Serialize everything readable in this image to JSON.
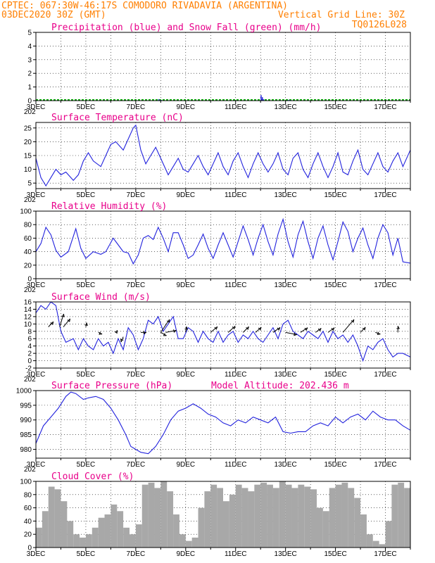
{
  "header": {
    "line1_left": "CPTEC:   067:30W-46:17S  COMODORO RIVADAVIA (ARGENTINA)",
    "line2_left": "03DEC2020 30Z (GMT)",
    "line2_right": "Vertical Grid Line: 30Z",
    "line3_right": "TQ0126L028"
  },
  "colors": {
    "header": "#ff7f00",
    "title": "#e8008a",
    "line": "#2222dd",
    "snow": "#00aa00",
    "cloud": "#a8a8a8"
  },
  "x_axis": {
    "start_day": 3,
    "end_day": 18,
    "tick_labels": [
      "3DEC",
      "5DEC",
      "7DEC",
      "9DEC",
      "11DEC",
      "13DEC",
      "15DEC",
      "17DEC"
    ],
    "tick_days": [
      3,
      5,
      7,
      9,
      11,
      13,
      15,
      17
    ],
    "year_fragment": "202"
  },
  "chart_data": [
    {
      "type": "bar",
      "title": "Precipitation (blue) and Snow Fall (green) (mm/h)",
      "ylim": [
        0,
        5
      ],
      "yticks": [
        0,
        1,
        2,
        3,
        4,
        5
      ],
      "series": [
        {
          "name": "Precipitation",
          "x": [
            7.9,
            8.0,
            12.0,
            12.05,
            12.1,
            13.1,
            13.2
          ],
          "values": [
            0.1,
            0.05,
            0.4,
            0.25,
            0.1,
            0.06,
            0.04
          ]
        },
        {
          "name": "Snow Fall",
          "x": [
            3.0,
            18.0
          ],
          "values": [
            0,
            0
          ]
        }
      ]
    },
    {
      "type": "line",
      "title": "Surface Temperature (nC)",
      "ylim": [
        3,
        27
      ],
      "yticks": [
        5,
        10,
        15,
        20,
        25
      ],
      "series": [
        {
          "name": "Surface Temperature",
          "x": [
            3.0,
            3.2,
            3.4,
            3.6,
            3.8,
            4.0,
            4.2,
            4.5,
            4.7,
            4.9,
            5.1,
            5.3,
            5.6,
            5.8,
            6.0,
            6.2,
            6.5,
            6.7,
            6.9,
            7.0,
            7.2,
            7.4,
            7.6,
            7.8,
            8.0,
            8.3,
            8.5,
            8.7,
            8.9,
            9.1,
            9.3,
            9.5,
            9.7,
            9.9,
            10.1,
            10.3,
            10.5,
            10.7,
            10.9,
            11.1,
            11.3,
            11.5,
            11.7,
            11.9,
            12.1,
            12.3,
            12.5,
            12.7,
            12.9,
            13.1,
            13.3,
            13.5,
            13.7,
            13.9,
            14.1,
            14.3,
            14.5,
            14.7,
            14.9,
            15.1,
            15.3,
            15.5,
            15.7,
            15.9,
            16.1,
            16.3,
            16.5,
            16.7,
            16.9,
            17.1,
            17.3,
            17.5,
            17.7,
            18.0
          ],
          "values": [
            14,
            7,
            4,
            7,
            10,
            8,
            9,
            6,
            8,
            13,
            16,
            13,
            11,
            15,
            19,
            20,
            17,
            21,
            25,
            26,
            17,
            12,
            15,
            18,
            14,
            8,
            11,
            14,
            10,
            9,
            12,
            15,
            11,
            8,
            12,
            16,
            11,
            8,
            13,
            16,
            11,
            7,
            12,
            16,
            12,
            9,
            12,
            16,
            10,
            8,
            14,
            16,
            10,
            7,
            12,
            16,
            11,
            7,
            11,
            16,
            9,
            8,
            13,
            17,
            10,
            8,
            12,
            16,
            11,
            9,
            13,
            16,
            11,
            17
          ]
        }
      ]
    },
    {
      "type": "line",
      "title": "Relative Humidity (%)",
      "ylim": [
        0,
        100
      ],
      "yticks": [
        0,
        20,
        40,
        60,
        80,
        100
      ],
      "series": [
        {
          "name": "Relative Humidity",
          "x": [
            3.0,
            3.2,
            3.4,
            3.6,
            3.8,
            4.0,
            4.3,
            4.6,
            4.8,
            5.0,
            5.3,
            5.6,
            5.8,
            6.1,
            6.3,
            6.5,
            6.7,
            6.9,
            7.1,
            7.3,
            7.5,
            7.7,
            7.9,
            8.1,
            8.3,
            8.5,
            8.7,
            8.9,
            9.1,
            9.3,
            9.5,
            9.7,
            9.9,
            10.1,
            10.3,
            10.5,
            10.7,
            10.9,
            11.1,
            11.3,
            11.5,
            11.7,
            11.9,
            12.1,
            12.3,
            12.5,
            12.7,
            12.9,
            13.1,
            13.3,
            13.5,
            13.7,
            13.9,
            14.1,
            14.3,
            14.5,
            14.7,
            14.9,
            15.1,
            15.3,
            15.5,
            15.7,
            15.9,
            16.1,
            16.3,
            16.5,
            16.7,
            16.9,
            17.1,
            17.3,
            17.5,
            17.7,
            18.0
          ],
          "values": [
            40,
            52,
            76,
            65,
            42,
            32,
            40,
            74,
            45,
            30,
            40,
            36,
            40,
            60,
            50,
            40,
            38,
            22,
            35,
            60,
            64,
            58,
            76,
            60,
            40,
            68,
            68,
            50,
            30,
            35,
            50,
            66,
            45,
            30,
            50,
            68,
            50,
            32,
            55,
            78,
            58,
            35,
            60,
            80,
            55,
            35,
            66,
            88,
            55,
            32,
            65,
            85,
            55,
            30,
            60,
            78,
            50,
            28,
            55,
            84,
            70,
            40,
            60,
            75,
            50,
            30,
            60,
            80,
            68,
            35,
            60,
            25,
            23
          ]
        }
      ]
    },
    {
      "type": "line",
      "title": "Surface Wind (m/s)",
      "ylim": [
        -2,
        16
      ],
      "yticks": [
        -2,
        0,
        2,
        4,
        6,
        8,
        10,
        12,
        14,
        16
      ],
      "series": [
        {
          "name": "Surface Wind",
          "x": [
            3.0,
            3.2,
            3.4,
            3.6,
            3.8,
            4.0,
            4.2,
            4.5,
            4.7,
            4.9,
            5.1,
            5.3,
            5.5,
            5.7,
            5.9,
            6.1,
            6.3,
            6.5,
            6.7,
            6.9,
            7.1,
            7.3,
            7.5,
            7.7,
            7.9,
            8.1,
            8.3,
            8.5,
            8.7,
            8.9,
            9.1,
            9.3,
            9.5,
            9.7,
            9.9,
            10.1,
            10.3,
            10.5,
            10.7,
            10.9,
            11.1,
            11.3,
            11.5,
            11.7,
            11.9,
            12.1,
            12.3,
            12.5,
            12.7,
            12.9,
            13.1,
            13.3,
            13.5,
            13.7,
            13.9,
            14.1,
            14.3,
            14.5,
            14.7,
            14.9,
            15.1,
            15.3,
            15.5,
            15.7,
            15.9,
            16.1,
            16.3,
            16.5,
            16.7,
            16.9,
            17.1,
            17.3,
            17.5,
            17.7,
            18.0
          ],
          "values": [
            13,
            15,
            14,
            16,
            15,
            8,
            5,
            6,
            3,
            6,
            4,
            3,
            6,
            4,
            5,
            2,
            6,
            3,
            9,
            7,
            3,
            6,
            11,
            10,
            12,
            8,
            10,
            12,
            6,
            6,
            9,
            8,
            5,
            8,
            6,
            5,
            8,
            5,
            7,
            8,
            5,
            7,
            6,
            8,
            6,
            5,
            7,
            9,
            6,
            10,
            11,
            8,
            7,
            6,
            8,
            7,
            6,
            8,
            5,
            8,
            6,
            7,
            5,
            7,
            4,
            0,
            4,
            3,
            5,
            6,
            3,
            1,
            2,
            2,
            1
          ]
        }
      ]
    },
    {
      "type": "line",
      "title": "Surface Pressure (hPa)",
      "annotation": "Model Altitude: 202.436 m",
      "ylim": [
        977,
        1000
      ],
      "yticks": [
        980,
        985,
        990,
        995,
        1000
      ],
      "series": [
        {
          "name": "Surface Pressure",
          "x": [
            3.0,
            3.3,
            3.6,
            3.9,
            4.2,
            4.4,
            4.6,
            4.9,
            5.1,
            5.4,
            5.7,
            6.0,
            6.3,
            6.6,
            6.8,
            7.0,
            7.2,
            7.5,
            7.8,
            8.1,
            8.4,
            8.7,
            9.0,
            9.3,
            9.6,
            9.9,
            10.2,
            10.5,
            10.8,
            11.1,
            11.4,
            11.7,
            12.0,
            12.3,
            12.6,
            12.9,
            13.2,
            13.5,
            13.8,
            14.1,
            14.4,
            14.7,
            15.0,
            15.3,
            15.6,
            15.9,
            16.2,
            16.5,
            16.8,
            17.1,
            17.4,
            17.7,
            18.0
          ],
          "values": [
            982,
            988,
            991,
            994,
            998,
            999.5,
            999,
            997,
            997.5,
            998,
            997,
            994,
            990,
            985,
            981,
            980,
            979,
            978.5,
            981,
            985,
            990,
            993,
            994,
            995.5,
            994,
            992,
            991,
            989,
            988,
            990,
            989,
            991,
            990,
            989,
            991,
            986,
            985.5,
            986,
            986,
            988,
            989,
            988,
            991,
            989,
            991,
            992,
            990,
            993,
            991,
            990,
            990,
            988,
            986.5
          ]
        }
      ]
    },
    {
      "type": "bar",
      "title": "Cloud Cover (%)",
      "ylim": [
        0,
        100
      ],
      "yticks": [
        0,
        20,
        40,
        60,
        80,
        100
      ],
      "series": [
        {
          "name": "Cloud Cover",
          "x": [
            3.0,
            3.25,
            3.5,
            3.75,
            4.0,
            4.25,
            4.5,
            4.75,
            5.0,
            5.25,
            5.5,
            5.75,
            6.0,
            6.25,
            6.5,
            6.75,
            7.0,
            7.25,
            7.5,
            7.75,
            8.0,
            8.25,
            8.5,
            8.75,
            9.0,
            9.25,
            9.5,
            9.75,
            10.0,
            10.25,
            10.5,
            10.75,
            11.0,
            11.25,
            11.5,
            11.75,
            12.0,
            12.25,
            12.5,
            12.75,
            13.0,
            13.25,
            13.5,
            13.75,
            14.0,
            14.25,
            14.5,
            14.75,
            15.0,
            15.25,
            15.5,
            15.75,
            16.0,
            16.25,
            16.5,
            16.75,
            17.0,
            17.25,
            17.5,
            17.75
          ],
          "values": [
            30,
            55,
            92,
            88,
            70,
            40,
            20,
            15,
            20,
            30,
            45,
            50,
            65,
            55,
            30,
            20,
            35,
            95,
            98,
            90,
            100,
            85,
            50,
            20,
            10,
            15,
            60,
            85,
            95,
            90,
            70,
            80,
            95,
            90,
            85,
            95,
            98,
            95,
            90,
            100,
            95,
            90,
            95,
            92,
            88,
            60,
            55,
            90,
            95,
            98,
            90,
            75,
            50,
            20,
            10,
            5,
            40,
            95,
            98,
            90
          ]
        }
      ]
    }
  ]
}
